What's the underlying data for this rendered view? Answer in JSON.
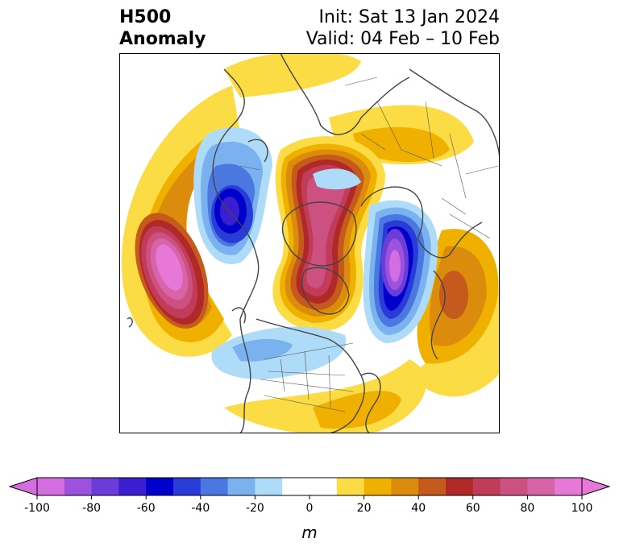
{
  "header": {
    "title_line1": "H500",
    "title_line2": "Anomaly",
    "init": "Init: Sat 13 Jan 2024",
    "valid": "Valid: 04 Feb – 10 Feb"
  },
  "colorbar": {
    "unit": "m",
    "ticks": [
      "-100",
      "-80",
      "-60",
      "-40",
      "-20",
      "0",
      "20",
      "40",
      "60",
      "80",
      "100"
    ],
    "tick_values": [
      -100,
      -80,
      -60,
      -40,
      -20,
      0,
      20,
      40,
      60,
      80,
      100
    ],
    "bounds": [
      -100,
      100
    ],
    "interval": 10,
    "extend": "both",
    "colors": [
      "#d46ee0",
      "#9c52dc",
      "#6c3cd8",
      "#3a1ed0",
      "#0000cc",
      "#2a3cd8",
      "#4a78e0",
      "#7ab2f0",
      "#aedcf8",
      "#ffffff",
      "#ffffff",
      "#fcdc44",
      "#f0b000",
      "#dc8c0c",
      "#c45a1c",
      "#b02828",
      "#c03c58",
      "#cc5080",
      "#d864a8",
      "#e878d8"
    ]
  }
}
